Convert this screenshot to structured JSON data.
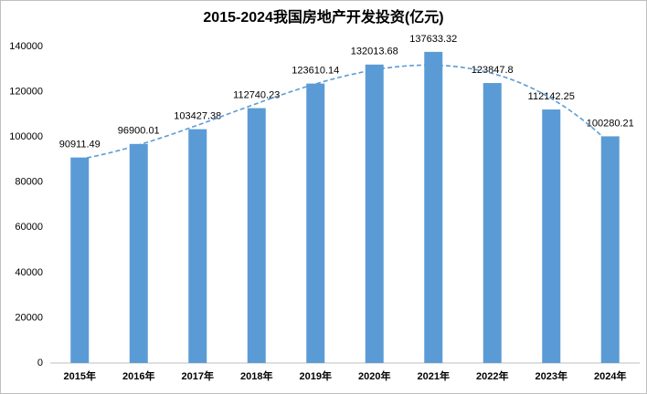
{
  "chart_data": {
    "type": "bar",
    "title": "2015-2024我国房地产开发投资(亿元)",
    "categories": [
      "2015年",
      "2016年",
      "2017年",
      "2018年",
      "2019年",
      "2020年",
      "2021年",
      "2022年",
      "2023年",
      "2024年"
    ],
    "values": [
      90911.49,
      96900.01,
      103427.38,
      112740.23,
      123610.14,
      132013.68,
      137633.32,
      123847.8,
      112142.25,
      100280.21
    ],
    "color": "#5b9bd5",
    "ylim": [
      0,
      140000
    ],
    "yticks": [
      0,
      20000,
      40000,
      60000,
      80000,
      100000,
      120000,
      140000
    ],
    "grid": false,
    "trendline": true
  }
}
